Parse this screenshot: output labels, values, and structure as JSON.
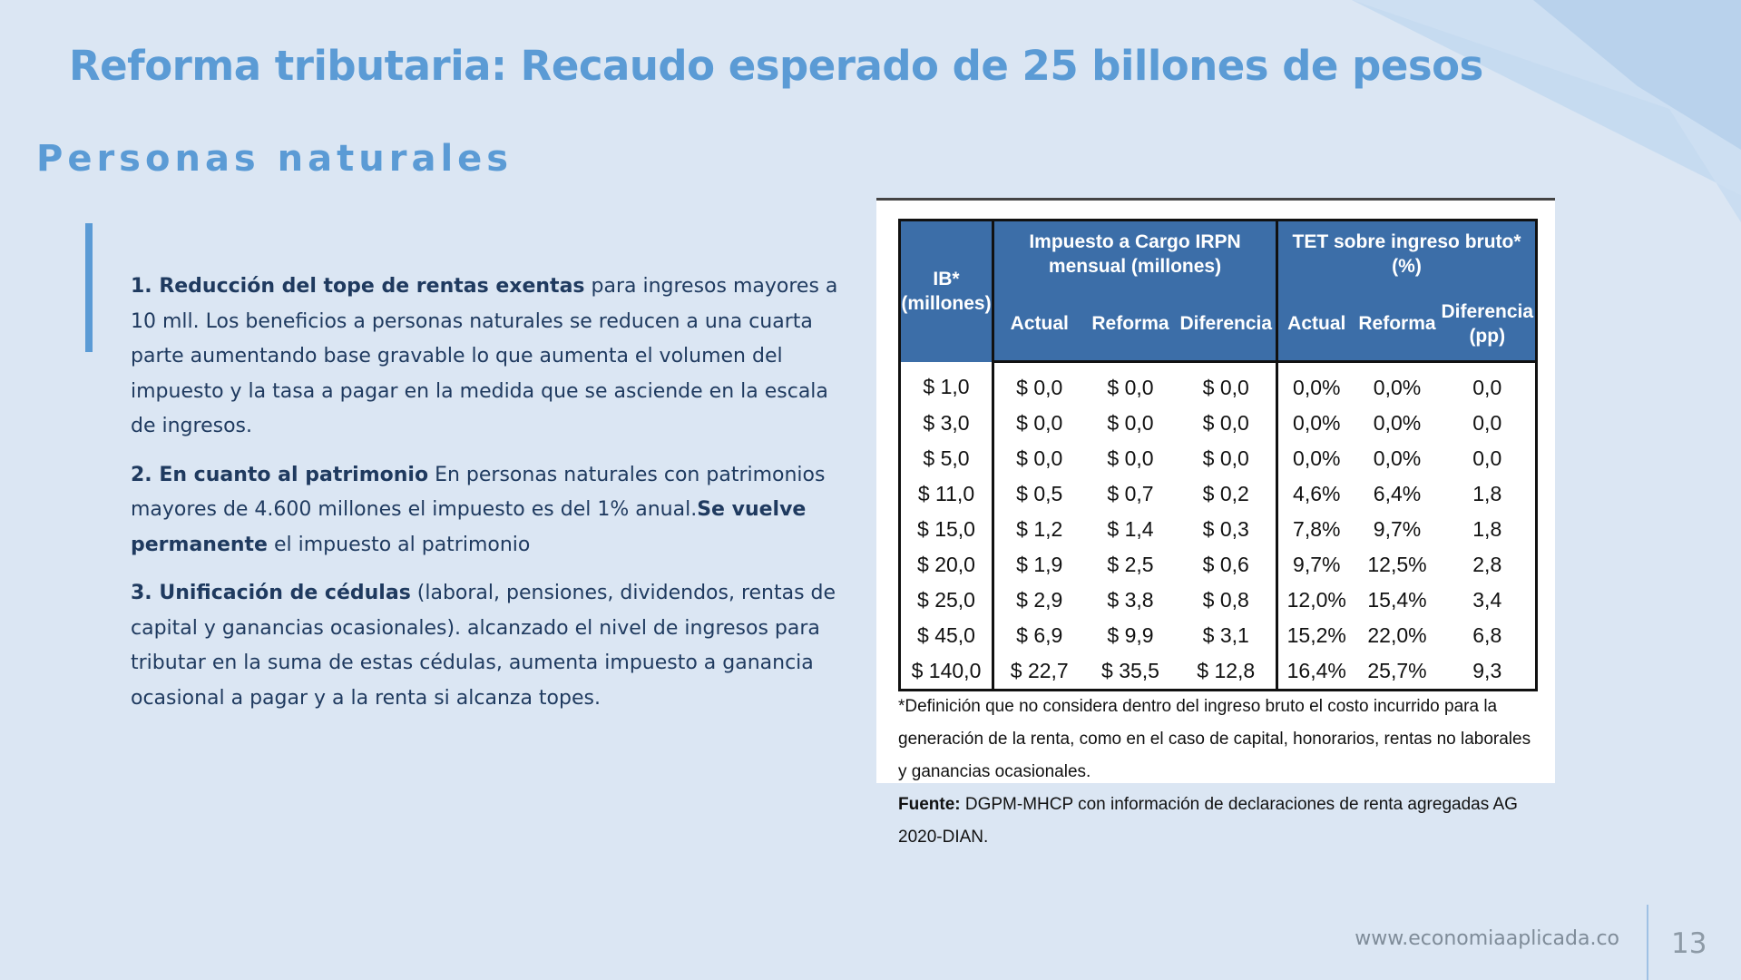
{
  "slide": {
    "title": "Reforma tributaria: Recaudo esperado de 25 billones de pesos",
    "subtitle": "Personas naturales"
  },
  "content": {
    "item1_bold": "1. Reducción del tope de rentas exentas",
    "item1_text": " para ingresos mayores a 10 mll. Los beneficios a personas naturales se reducen a una cuarta parte aumentando base gravable lo que aumenta el volumen del impuesto y la tasa a pagar en la medida que se asciende en la escala de ingresos.",
    "item2_bold": "2. En cuanto al patrimonio",
    "item2_text": " En personas naturales con patrimonios mayores de 4.600 millones el impuesto es del 1% anual.",
    "item2_bold2": "Se vuelve permanente",
    "item2_text2": " el impuesto al patrimonio",
    "item3_bold": "3. Unificación de cédulas",
    "item3_text": " (laboral, pensiones, dividendos, rentas de capital y ganancias ocasionales). alcanzado el nivel de ingresos para tributar en la suma de estas cédulas, aumenta impuesto a ganancia ocasional a pagar y a la renta si alcanza topes."
  },
  "table": {
    "header": {
      "ib": "IB* (millones)",
      "group1": "Impuesto a Cargo IRPN mensual (millones)",
      "group2": "TET sobre ingreso bruto* (%)",
      "actual1": "Actual",
      "reforma1": "Reforma",
      "diferencia1": "Diferencia",
      "actual2": "Actual",
      "reforma2": "Reforma",
      "diferencia2": "Diferencia (pp)"
    },
    "rows": [
      [
        "$ 1,0",
        "$ 0,0",
        "$ 0,0",
        "$ 0,0",
        "0,0%",
        "0,0%",
        "0,0"
      ],
      [
        "$ 3,0",
        "$ 0,0",
        "$ 0,0",
        "$ 0,0",
        "0,0%",
        "0,0%",
        "0,0"
      ],
      [
        "$ 5,0",
        "$ 0,0",
        "$ 0,0",
        "$ 0,0",
        "0,0%",
        "0,0%",
        "0,0"
      ],
      [
        "$ 11,0",
        "$ 0,5",
        "$ 0,7",
        "$ 0,2",
        "4,6%",
        "6,4%",
        "1,8"
      ],
      [
        "$ 15,0",
        "$ 1,2",
        "$ 1,4",
        "$ 0,3",
        "7,8%",
        "9,7%",
        "1,8"
      ],
      [
        "$ 20,0",
        "$ 1,9",
        "$ 2,5",
        "$ 0,6",
        "9,7%",
        "12,5%",
        "2,8"
      ],
      [
        "$ 25,0",
        "$ 2,9",
        "$ 3,8",
        "$ 0,8",
        "12,0%",
        "15,4%",
        "3,4"
      ],
      [
        "$ 45,0",
        "$ 6,9",
        "$ 9,9",
        "$ 3,1",
        "15,2%",
        "22,0%",
        "6,8"
      ],
      [
        "$ 140,0",
        "$ 22,7",
        "$ 35,5",
        "$ 12,8",
        "16,4%",
        "25,7%",
        "9,3"
      ]
    ],
    "note": "*Definición que no considera dentro del ingreso bruto el costo incurrido para la generación de la renta, como en el caso de capital, honorarios, rentas no laborales y ganancias ocasionales.",
    "source_label": "Fuente:",
    "source_text": " DGPM-MHCP con información de declaraciones de renta agregadas AG 2020-DIAN."
  },
  "footer": {
    "url": "www.economiaaplicada.co",
    "page": "13"
  },
  "colors": {
    "accent": "#5b9bd5",
    "background": "#dbe6f3",
    "table_header": "#3c6ea8",
    "text": "#1f3a5f"
  }
}
